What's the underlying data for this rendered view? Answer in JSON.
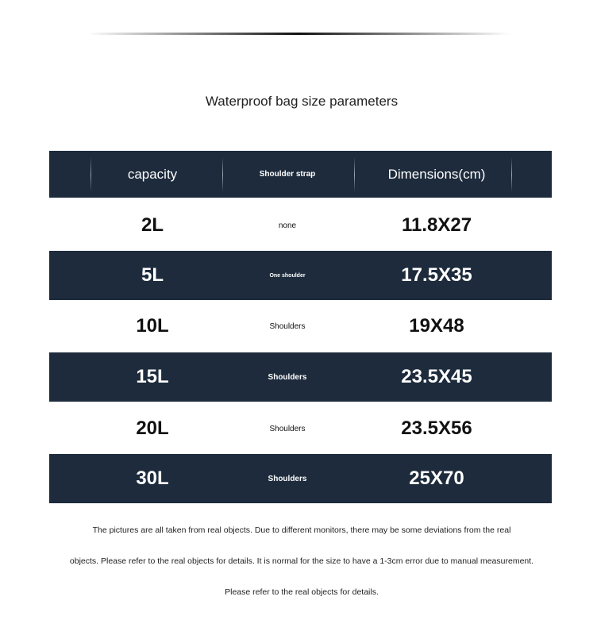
{
  "title": "Waterproof bag size parameters",
  "table": {
    "headers": [
      "capacity",
      "Shoulder strap",
      "Dimensions(cm)"
    ],
    "rows": [
      {
        "capacity": "2L",
        "strap": "none",
        "dimensions": "11.8X27"
      },
      {
        "capacity": "5L",
        "strap": "One shoulder",
        "dimensions": "17.5X35"
      },
      {
        "capacity": "10L",
        "strap": "Shoulders",
        "dimensions": "19X48"
      },
      {
        "capacity": "15L",
        "strap": "Shoulders",
        "dimensions": "23.5X45"
      },
      {
        "capacity": "20L",
        "strap": "Shoulders",
        "dimensions": "23.5X56"
      },
      {
        "capacity": "30L",
        "strap": "Shoulders",
        "dimensions": "25X70"
      }
    ]
  },
  "notes": [
    "The pictures are all taken from real objects. Due to different monitors, there may be some deviations from the real",
    "objects. Please refer to the real objects for details. It is normal for the size to have a 1-3cm error due to manual measurement.",
    "Please refer to the real objects for details."
  ],
  "colors": {
    "header_bg": "#1d2b3c",
    "row_dark": "#1d2b3c",
    "row_light": "#ffffff"
  }
}
